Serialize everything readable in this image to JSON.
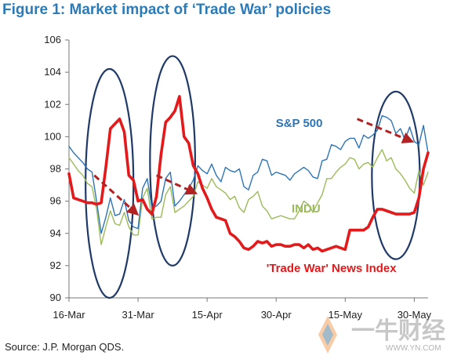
{
  "figure": {
    "title": "Figure 1: Market impact of ‘Trade War’ policies",
    "source": "Source: J.P. Morgan QDS."
  },
  "watermark": {
    "main": "一牛财经",
    "url": "WWW.YN.COM"
  },
  "chart_data": {
    "type": "line",
    "title": "",
    "xlabel": "",
    "ylabel": "",
    "ylim": [
      90,
      106
    ],
    "yticks": [
      90,
      92,
      94,
      96,
      98,
      100,
      102,
      104,
      106
    ],
    "xticks": [
      "16-Mar",
      "31-Mar",
      "15-Apr",
      "30-Apr",
      "15-May",
      "30-May"
    ],
    "xtick_positions": [
      0,
      15,
      30,
      45,
      60,
      75
    ],
    "xlim": [
      0,
      78
    ],
    "grid": false,
    "series": [
      {
        "name": "S&P 500",
        "color": "#2e75b6",
        "x": [
          0,
          1,
          2,
          3,
          4,
          5,
          6,
          7,
          8,
          9,
          10,
          11,
          12,
          13,
          14,
          15,
          16,
          17,
          18,
          19,
          20,
          21,
          22,
          23,
          24,
          25,
          26,
          27,
          28,
          29,
          30,
          31,
          32,
          33,
          34,
          35,
          36,
          37,
          38,
          39,
          40,
          41,
          42,
          43,
          44,
          45,
          46,
          47,
          48,
          49,
          50,
          51,
          52,
          53,
          54,
          55,
          56,
          57,
          58,
          59,
          60,
          61,
          62,
          63,
          64,
          65,
          66,
          67,
          68,
          69,
          70,
          71,
          72,
          73,
          74,
          75,
          76,
          77,
          78
        ],
        "values": [
          99.4,
          99.0,
          98.7,
          98.4,
          98.0,
          97.8,
          96.0,
          94.0,
          95.0,
          96.2,
          95.1,
          95.2,
          96.1,
          94.8,
          94.4,
          94.3,
          96.8,
          97.4,
          95.6,
          95.7,
          96.0,
          97.4,
          97.8,
          95.7,
          96.0,
          96.4,
          96.8,
          97.3,
          98.2,
          97.9,
          97.7,
          98.3,
          97.6,
          97.2,
          98.1,
          97.9,
          97.8,
          98.0,
          96.9,
          96.7,
          97.6,
          97.8,
          98.6,
          98.5,
          97.6,
          97.8,
          97.7,
          97.6,
          97.3,
          97.7,
          97.9,
          98.1,
          97.9,
          97.5,
          97.4,
          98.5,
          98.6,
          99.5,
          99.4,
          99.2,
          99.7,
          99.9,
          99.9,
          99.3,
          100.1,
          99.9,
          100.1,
          100.4,
          101.3,
          101.2,
          101.0,
          100.2,
          100.5,
          99.8,
          100.6,
          99.7,
          99.5,
          100.7,
          99.0
        ],
        "label_value": {
          "x": 50,
          "y": 100.6
        }
      },
      {
        "name": "INDU",
        "color": "#9bbb59",
        "x": [
          0,
          1,
          2,
          3,
          4,
          5,
          6,
          7,
          8,
          9,
          10,
          11,
          12,
          13,
          14,
          15,
          16,
          17,
          18,
          19,
          20,
          21,
          22,
          23,
          24,
          25,
          26,
          27,
          28,
          29,
          30,
          31,
          32,
          33,
          34,
          35,
          36,
          37,
          38,
          39,
          40,
          41,
          42,
          43,
          44,
          45,
          46,
          47,
          48,
          49,
          50,
          51,
          52,
          53,
          54,
          55,
          56,
          57,
          58,
          59,
          60,
          61,
          62,
          63,
          64,
          65,
          66,
          67,
          68,
          69,
          70,
          71,
          72,
          73,
          74,
          75,
          76,
          77,
          78
        ],
        "values": [
          98.7,
          98.3,
          97.9,
          97.6,
          97.1,
          96.9,
          95.5,
          93.3,
          94.4,
          95.4,
          94.6,
          94.5,
          95.3,
          94.4,
          93.9,
          93.9,
          96.2,
          96.8,
          94.9,
          95.0,
          95.0,
          96.4,
          96.9,
          95.3,
          95.5,
          95.7,
          96.0,
          96.3,
          97.2,
          97.0,
          96.8,
          97.4,
          96.9,
          96.7,
          96.5,
          96.1,
          96.3,
          95.6,
          95.3,
          96.1,
          96.3,
          96.6,
          95.7,
          95.4,
          94.9,
          95.0,
          95.1,
          95.0,
          94.9,
          94.9,
          95.4,
          96.0,
          95.8,
          95.3,
          95.9,
          96.4,
          97.4,
          97.4,
          97.8,
          98.1,
          98.3,
          98.7,
          98.6,
          98.0,
          98.3,
          98.4,
          98.1,
          98.7,
          99.2,
          98.5,
          98.7,
          98.0,
          97.7,
          97.3,
          96.8,
          96.5,
          97.9,
          97.0,
          97.8
        ],
        "label_value": {
          "x": 51.5,
          "y": 95.3
        }
      },
      {
        "name": "'Trade War' News Index",
        "color": "#e31a1c",
        "x": [
          0,
          1,
          2,
          3,
          4,
          5,
          6,
          7,
          8,
          9,
          10,
          11,
          12,
          13,
          14,
          15,
          16,
          17,
          18,
          19,
          20,
          21,
          22,
          23,
          24,
          25,
          26,
          27,
          28,
          29,
          30,
          31,
          32,
          33,
          34,
          35,
          36,
          37,
          38,
          39,
          40,
          41,
          42,
          43,
          44,
          45,
          46,
          47,
          48,
          49,
          50,
          51,
          52,
          53,
          54,
          55,
          56,
          57,
          58,
          59,
          60,
          61,
          62,
          63,
          64,
          65,
          66,
          67,
          68,
          69,
          70,
          71,
          72,
          73,
          74,
          75,
          76,
          77,
          78
        ],
        "values": [
          97.7,
          96.2,
          96.1,
          96.0,
          95.9,
          95.9,
          95.8,
          95.9,
          98.1,
          100.5,
          100.8,
          101.1,
          100.3,
          97.6,
          97.3,
          96.0,
          96.1,
          95.5,
          95.2,
          96.3,
          98.9,
          100.9,
          101.2,
          101.6,
          102.5,
          100.0,
          99.6,
          98.2,
          97.7,
          96.8,
          96.2,
          95.5,
          95.0,
          94.9,
          94.8,
          94.0,
          93.8,
          93.5,
          93.1,
          93.0,
          93.2,
          93.5,
          93.4,
          93.5,
          93.2,
          93.3,
          93.3,
          93.2,
          93.2,
          93.3,
          93.3,
          93.1,
          93.3,
          93.0,
          93.1,
          92.9,
          93.0,
          93.1,
          93.2,
          93.1,
          93.0,
          94.2,
          94.2,
          94.2,
          94.2,
          94.4,
          95.0,
          95.5,
          95.5,
          95.4,
          95.3,
          95.2,
          95.2,
          95.2,
          95.2,
          95.3,
          96.2,
          98.0,
          99.0
        ],
        "label_value": {
          "x": 57,
          "y": 91.6
        }
      }
    ],
    "annotations": {
      "ellipses": [
        {
          "cx": 8.8,
          "cy": 97.1,
          "rx": 5.2,
          "ry": 7.1
        },
        {
          "cx": 22.5,
          "cy": 98.5,
          "rx": 4.9,
          "ry": 6.5
        },
        {
          "cx": 71.0,
          "cy": 97.6,
          "rx": 5.2,
          "ry": 5.2
        }
      ],
      "arrows": [
        {
          "from": [
            5.5,
            97.6
          ],
          "to": [
            14.8,
            95.2
          ],
          "color": "#b22222"
        },
        {
          "from": [
            19.0,
            97.6
          ],
          "to": [
            27.5,
            96.5
          ],
          "color": "#b22222"
        },
        {
          "from": [
            62.6,
            101.1
          ],
          "to": [
            74.5,
            99.7
          ],
          "color": "#b22222"
        }
      ]
    }
  }
}
